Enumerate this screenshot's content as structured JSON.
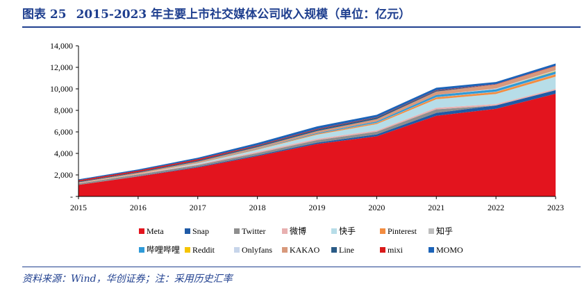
{
  "header": {
    "figure_label": "图表 25",
    "title": "2015-2023 年主要上市社交媒体公司收入规模（单位：亿元）"
  },
  "source": "资料来源：Wind，华创证券；注：采用历史汇率",
  "colors": {
    "title": "#1f3f8f"
  },
  "chart_data": {
    "type": "area",
    "stacked": true,
    "x": [
      "2015",
      "2016",
      "2017",
      "2018",
      "2019",
      "2020",
      "2021",
      "2022",
      "2023"
    ],
    "ylim": [
      0,
      14000
    ],
    "yticks": [
      0,
      2000,
      4000,
      6000,
      8000,
      10000,
      12000,
      14000
    ],
    "ytick_labels": [
      "-",
      "2,000",
      "4,000",
      "6,000",
      "8,000",
      "10,000",
      "12,000",
      "14,000"
    ],
    "grid": false,
    "legend_position": "bottom",
    "series": [
      {
        "name": "Meta",
        "color": "#e3141e",
        "values": [
          1070,
          1850,
          2700,
          3750,
          4880,
          5590,
          7500,
          8150,
          9550
        ]
      },
      {
        "name": "Snap",
        "color": "#1f5aa6",
        "values": [
          4,
          25,
          55,
          80,
          120,
          175,
          270,
          310,
          330
        ]
      },
      {
        "name": "Twitter",
        "color": "#8e8e8e",
        "values": [
          140,
          170,
          160,
          205,
          235,
          250,
          325,
          0,
          0
        ]
      },
      {
        "name": "微博",
        "color": "#e8b0b0",
        "values": [
          30,
          45,
          75,
          115,
          120,
          115,
          145,
          125,
          125
        ]
      },
      {
        "name": "快手",
        "color": "#b7dde8",
        "values": [
          0,
          0,
          85,
          200,
          390,
          590,
          800,
          940,
          1130
        ]
      },
      {
        "name": "Pinterest",
        "color": "#f28c40",
        "values": [
          10,
          20,
          32,
          50,
          75,
          115,
          165,
          180,
          215
        ]
      },
      {
        "name": "知乎",
        "color": "#bdbdbd",
        "values": [
          0,
          0,
          0,
          5,
          7,
          14,
          30,
          36,
          40
        ]
      },
      {
        "name": "哔哩哔哩",
        "color": "#2f9ad8",
        "values": [
          1,
          5,
          25,
          40,
          68,
          120,
          195,
          220,
          225
        ]
      },
      {
        "name": "Reddit",
        "color": "#f5c400",
        "values": [
          0,
          0,
          0,
          0,
          0,
          0,
          0,
          0,
          40
        ]
      },
      {
        "name": "Onlyfans",
        "color": "#c7d5ea",
        "values": [
          0,
          0,
          0,
          0,
          0,
          0,
          0,
          70,
          80
        ]
      },
      {
        "name": "KAKAO",
        "color": "#d8997c",
        "values": [
          60,
          85,
          115,
          135,
          175,
          215,
          320,
          370,
          380
        ]
      },
      {
        "name": "Line",
        "color": "#2a5b86",
        "values": [
          65,
          80,
          95,
          115,
          150,
          150,
          90,
          0,
          0
        ]
      },
      {
        "name": "mixi",
        "color": "#d91a1a",
        "values": [
          125,
          120,
          120,
          65,
          60,
          40,
          40,
          40,
          35
        ]
      },
      {
        "name": "MOMO",
        "color": "#1c63b8",
        "values": [
          85,
          110,
          140,
          205,
          230,
          215,
          225,
          195,
          205
        ]
      }
    ]
  }
}
